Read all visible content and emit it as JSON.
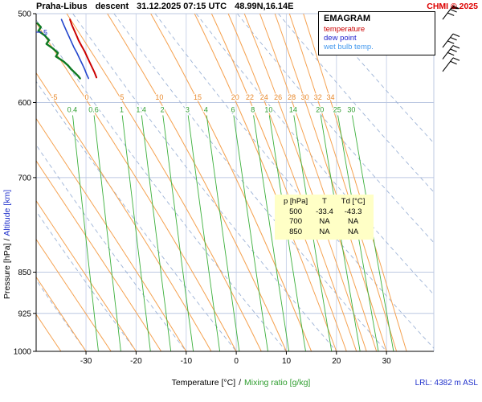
{
  "header": {
    "station": "Praha-Libus",
    "type": "descent",
    "datetime": "31.12.2025 07:15 UTC",
    "coords": "48.99N,16.14E",
    "copyright": "CHMI © 2025"
  },
  "legend": {
    "title": "EMAGRAM",
    "items": [
      {
        "label": "temperature",
        "color": "#cc0000"
      },
      {
        "label": "dew point",
        "color": "#2222cc"
      },
      {
        "label": "wet bulb temp.",
        "color": "#4499ee"
      }
    ]
  },
  "axes": {
    "left_label_pressure": "Pressure [hPa]",
    "left_label_separator": "/",
    "left_label_altitude": "Altitude [km]",
    "bottom_label_temp": "Temperature [°C]",
    "bottom_label_separator": "/",
    "bottom_label_mixing": "Mixing ratio [g/kg]",
    "altitude_tick_label": "5"
  },
  "footer": {
    "lrl": "LRL: 4382 m ASL"
  },
  "table": {
    "header": [
      "p [hPa]",
      "T",
      "Td [°C]"
    ],
    "rows": [
      [
        "500",
        "-33.4",
        "-43.3"
      ],
      [
        "700",
        "NA",
        "NA"
      ],
      [
        "850",
        "NA",
        "NA"
      ]
    ]
  },
  "colors": {
    "chmi_red": "#dd0000",
    "axis_blue": "#2233cc",
    "lrl_blue": "#2233cc",
    "grid": "#bcc8e2",
    "vgrid": "#ccd6ea",
    "dry_adiabat": "#9db3d6",
    "moist_adiabat": "#f5a14f",
    "moist_label": "#e8882a",
    "mixing": "#3cb03c",
    "mixing_label": "#2f9e2f",
    "table_bg": "#ffffc6",
    "frame": "#000000"
  },
  "chart_data": {
    "type": "line",
    "title": "Praha-Libus descent 31.12.2025 07:15 UTC 48.99N,16.14E",
    "xlabel": "Temperature [°C] / Mixing ratio [g/kg]",
    "ylabel": "Pressure [hPa] / Altitude [km]",
    "x_axis": {
      "label": "Temperature [°C]",
      "range": [
        -39.9,
        39.4
      ],
      "ticks": [
        -30,
        -20,
        -10,
        0,
        10,
        20,
        30
      ]
    },
    "y_axis": {
      "label": "Pressure [hPa]",
      "scale": "log",
      "range": [
        500,
        1000
      ],
      "ticks": [
        500,
        600,
        700,
        850,
        925,
        1000
      ]
    },
    "dry_adiabats_theta": [
      -40,
      -30,
      -20,
      -10,
      0,
      10,
      20,
      30,
      40,
      50,
      60,
      70,
      80
    ],
    "moist_adiabats_thetaw": [
      -40,
      -35,
      -30,
      -25,
      -20,
      -15,
      -10,
      -5,
      0,
      5,
      10,
      15,
      20,
      22,
      24,
      26,
      28,
      30,
      32,
      34
    ],
    "moist_adiabat_labels": [
      -5,
      0,
      5,
      10,
      15,
      20,
      22,
      24,
      26,
      28,
      30,
      32,
      34
    ],
    "mixing_ratio_values": [
      0.4,
      0.6,
      1,
      1.4,
      2,
      3,
      4,
      6,
      8,
      10,
      14,
      20,
      25,
      30
    ],
    "series": [
      {
        "key": "temperature",
        "name": "temperature",
        "color": "#cc0000",
        "width": 2,
        "points": [
          [
            506,
            -33.2
          ],
          [
            512,
            -32.8
          ],
          [
            518,
            -32.3
          ],
          [
            524,
            -31.8
          ],
          [
            528,
            -31.5
          ],
          [
            534,
            -30.9
          ],
          [
            540,
            -30.3
          ],
          [
            546,
            -29.8
          ],
          [
            552,
            -29.3
          ],
          [
            558,
            -28.8
          ],
          [
            564,
            -28.3
          ],
          [
            570,
            -27.9
          ]
        ]
      },
      {
        "key": "dew-point",
        "name": "dew point",
        "color": "#0e7a22",
        "width": 2.4,
        "points": [
          [
            510,
            -39.7
          ],
          [
            514,
            -39.0
          ],
          [
            518,
            -39.5
          ],
          [
            523,
            -38.2
          ],
          [
            528,
            -37.4
          ],
          [
            532,
            -37.9
          ],
          [
            537,
            -36.6
          ],
          [
            542,
            -35.6
          ],
          [
            546,
            -36.0
          ],
          [
            551,
            -34.6
          ],
          [
            556,
            -33.6
          ],
          [
            560,
            -33.0
          ],
          [
            564,
            -32.3
          ],
          [
            568,
            -31.6
          ],
          [
            571,
            -31.2
          ]
        ]
      },
      {
        "key": "wet-bulb",
        "name": "wet bulb temp.",
        "color": "#2244cc",
        "width": 1.6,
        "points": [
          [
            506,
            -34.9
          ],
          [
            512,
            -34.4
          ],
          [
            518,
            -33.9
          ],
          [
            524,
            -33.4
          ],
          [
            530,
            -32.9
          ],
          [
            536,
            -32.4
          ],
          [
            542,
            -31.8
          ],
          [
            548,
            -31.3
          ],
          [
            554,
            -30.8
          ],
          [
            560,
            -30.3
          ],
          [
            566,
            -29.9
          ],
          [
            571,
            -29.5
          ]
        ]
      }
    ],
    "sounding_table": {
      "columns": [
        "p [hPa]",
        "T",
        "Td [°C]"
      ],
      "rows": [
        [
          500,
          -33.4,
          -43.3
        ],
        [
          700,
          null,
          null
        ],
        [
          850,
          null,
          null
        ]
      ]
    },
    "lrl_m_asl": 4382,
    "wind_barb_x": 551,
    "wind_barbs": [
      {
        "p": 506,
        "pennant": true,
        "feathers": 2
      },
      {
        "p": 536,
        "pennant": false,
        "feathers": 3
      },
      {
        "p": 549,
        "pennant": false,
        "feathers": 3
      },
      {
        "p": 563,
        "pennant": false,
        "feathers": 2
      }
    ]
  }
}
